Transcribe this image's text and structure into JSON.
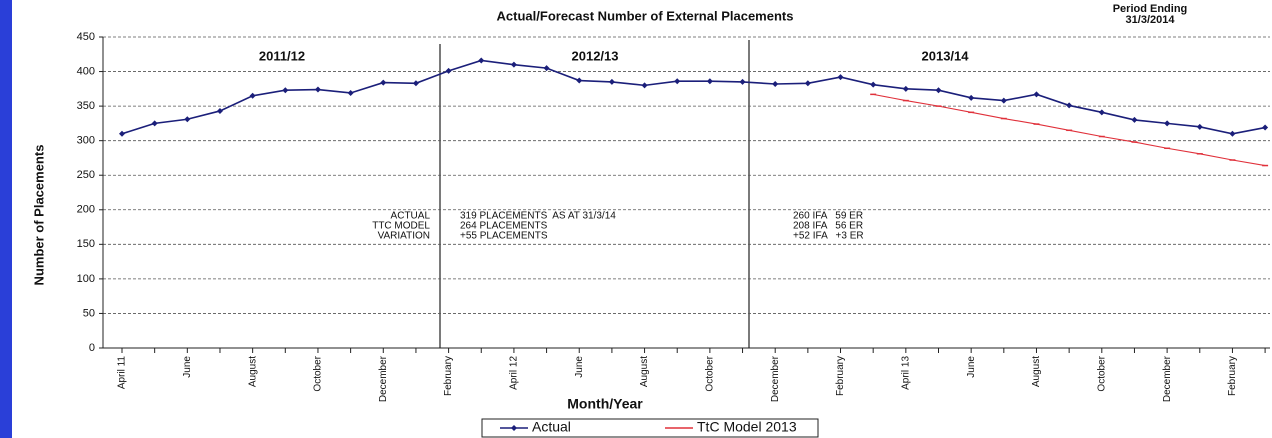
{
  "chart_data": {
    "type": "line",
    "title": "Actual/Forecast Number of External Placements",
    "note_title": "Period Ending",
    "note_date": "31/3/2014",
    "x_label": "Month/Year",
    "y_label": "Number of Placements",
    "categories": [
      "April 11",
      null,
      "June",
      null,
      "August",
      null,
      "October",
      null,
      "December",
      null,
      "February",
      null,
      "April 12",
      null,
      "June",
      null,
      "August",
      null,
      "October",
      null,
      "December",
      null,
      "February",
      null,
      "April 13",
      null,
      "June",
      null,
      "August",
      null,
      "October",
      null,
      "December",
      null,
      "February",
      null
    ],
    "series": [
      {
        "name": "Actual",
        "color": "#1b1f7a",
        "values": [
          310,
          325,
          331,
          343,
          365,
          373,
          374,
          369,
          384,
          383,
          401,
          416,
          410,
          405,
          387,
          385,
          380,
          386,
          386,
          385,
          382,
          383,
          392,
          381,
          375,
          373,
          362,
          358,
          367,
          351,
          341,
          330,
          325,
          320,
          310,
          319
        ]
      },
      {
        "name": "TtC Model 2013",
        "color": "#e0303a",
        "values": [
          null,
          null,
          null,
          null,
          null,
          null,
          null,
          null,
          null,
          null,
          null,
          null,
          null,
          null,
          null,
          null,
          null,
          null,
          null,
          null,
          null,
          null,
          null,
          367,
          358,
          350,
          341,
          332,
          324,
          315,
          306,
          298,
          289,
          281,
          272,
          264
        ]
      }
    ],
    "ylim": [
      0,
      450
    ],
    "yticks": [
      0,
      50,
      100,
      150,
      200,
      250,
      300,
      350,
      400,
      450
    ],
    "grid": true,
    "periods": [
      "2011/12",
      "2012/13",
      "2013/14"
    ],
    "annotations": [
      [
        "ACTUAL",
        "TTC MODEL",
        "VARIATION"
      ],
      [
        "319 PLACEMENTS  AS AT 31/3/14",
        "264 PLACEMENTS",
        "+55 PLACEMENTS"
      ],
      [
        "260 IFA   59 ER",
        "208 IFA   56 ER",
        "+52 IFA   +3 ER"
      ]
    ]
  }
}
